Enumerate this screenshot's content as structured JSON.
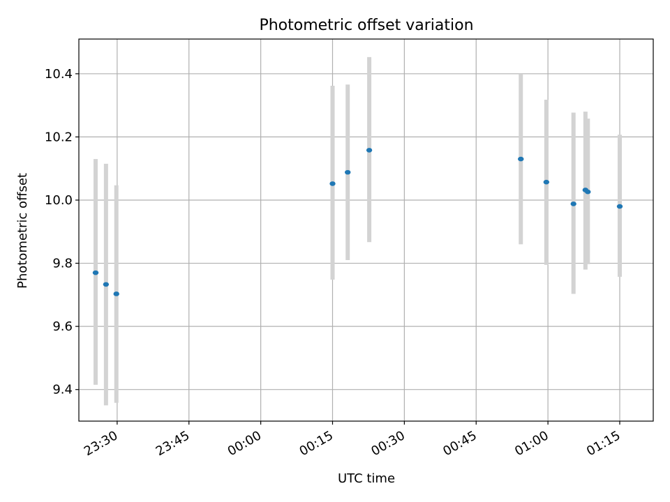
{
  "chart_data": {
    "type": "scatter",
    "title": "Photometric offset variation",
    "xlabel": "UTC time",
    "ylabel": "Photometric offset",
    "xlim": [
      "23:22",
      "01:22"
    ],
    "ylim": [
      9.3,
      10.51
    ],
    "x_ticks": [
      "23:30",
      "23:45",
      "00:00",
      "00:15",
      "00:30",
      "00:45",
      "01:00",
      "01:15"
    ],
    "y_ticks": [
      9.4,
      9.6,
      9.8,
      10.0,
      10.2,
      10.4
    ],
    "grid": true,
    "error_bar_color": "#d3d3d3",
    "marker_color": "#1f77b4",
    "series": [
      {
        "points": [
          {
            "x": "23:25:30",
            "y": 9.77,
            "ylow": 9.415,
            "yhigh": 10.13
          },
          {
            "x": "23:27:40",
            "y": 9.733,
            "ylow": 9.35,
            "yhigh": 10.115
          },
          {
            "x": "23:29:50",
            "y": 9.703,
            "ylow": 9.358,
            "yhigh": 10.047
          },
          {
            "x": "00:15:00",
            "y": 10.052,
            "ylow": 9.748,
            "yhigh": 10.362
          },
          {
            "x": "00:18:10",
            "y": 10.088,
            "ylow": 9.81,
            "yhigh": 10.366
          },
          {
            "x": "00:22:40",
            "y": 10.158,
            "ylow": 9.867,
            "yhigh": 10.453
          },
          {
            "x": "00:54:20",
            "y": 10.13,
            "ylow": 9.86,
            "yhigh": 10.4
          },
          {
            "x": "00:59:40",
            "y": 10.057,
            "ylow": 9.795,
            "yhigh": 10.318
          },
          {
            "x": "01:05:20",
            "y": 9.988,
            "ylow": 9.703,
            "yhigh": 10.277
          },
          {
            "x": "01:07:50",
            "y": 10.032,
            "ylow": 9.78,
            "yhigh": 10.28
          },
          {
            "x": "01:08:20",
            "y": 10.026,
            "ylow": 9.797,
            "yhigh": 10.258
          },
          {
            "x": "01:15:00",
            "y": 9.98,
            "ylow": 9.757,
            "yhigh": 10.207
          }
        ]
      }
    ]
  }
}
